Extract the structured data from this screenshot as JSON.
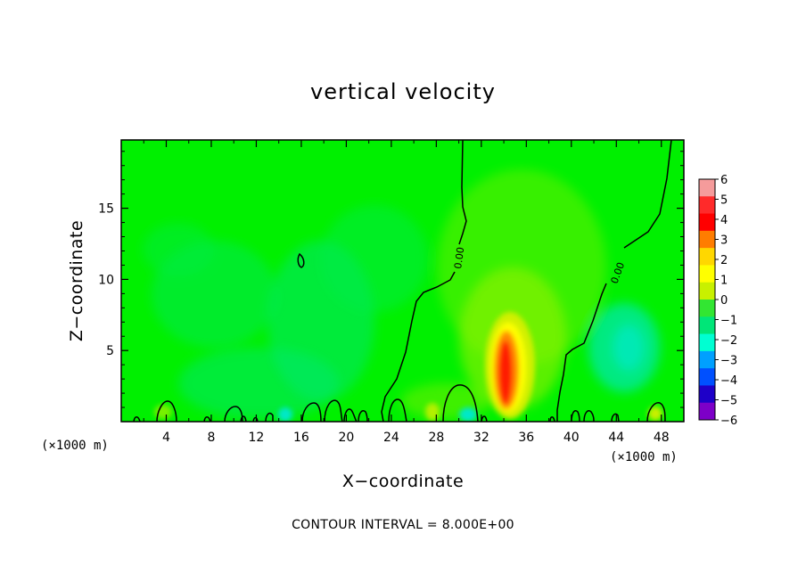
{
  "chart_data": {
    "type": "heatmap",
    "title": "vertical velocity",
    "xlabel": "X−coordinate",
    "ylabel": "Z−coordinate",
    "x_units": "(×1000 m)",
    "xlim": [
      0,
      50
    ],
    "ylim": [
      0,
      19.8
    ],
    "x_ticks": [
      4,
      8,
      12,
      16,
      20,
      24,
      28,
      32,
      36,
      40,
      44,
      48
    ],
    "y_ticks": [
      5,
      10,
      15
    ],
    "colorbar": {
      "levels": [
        6,
        5,
        4,
        3,
        2,
        1,
        0,
        -1,
        -2,
        -3,
        -4,
        -5,
        -6
      ],
      "colors": [
        "#f59b9b",
        "#ff2a2a",
        "#ff0000",
        "#ff7d00",
        "#ffd700",
        "#ffff00",
        "#c8f000",
        "#32e632",
        "#00e678",
        "#00ffd2",
        "#00a0ff",
        "#0050ff",
        "#1e00c8",
        "#7d00c8"
      ]
    },
    "field_features": [
      {
        "label": "updraft maximum",
        "x": 34,
        "z": 3,
        "value": 5.5
      },
      {
        "label": "broad weak ascent",
        "x": 34,
        "z": 12,
        "value": 1
      },
      {
        "label": "weak descent",
        "x": 45,
        "z": 5,
        "value": -1.5
      }
    ],
    "contour_labels": [
      "0.00",
      "0.00"
    ],
    "footer": "CONTOUR INTERVAL = 8.000E+00"
  },
  "colors": {
    "background_field": "#00f000"
  }
}
